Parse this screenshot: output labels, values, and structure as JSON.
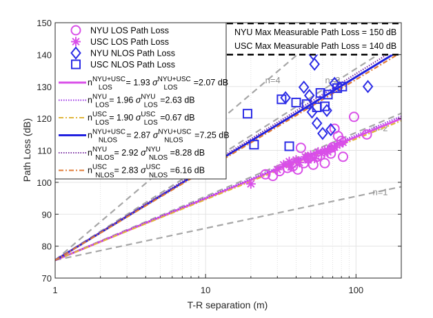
{
  "chart_data": {
    "type": "scatter",
    "title": "",
    "xlabel": "T-R separation (m)",
    "ylabel": "Path Loss (dB)",
    "xscale": "log",
    "xlim": [
      1,
      200
    ],
    "ylim": [
      70,
      150
    ],
    "xticks": [
      1,
      10,
      100
    ],
    "xtick_labels": [
      "1",
      "10",
      "100"
    ],
    "yticks": [
      70,
      80,
      90,
      100,
      110,
      120,
      130,
      140,
      150
    ],
    "ytick_labels": [
      "70",
      "80",
      "90",
      "100",
      "110",
      "120",
      "130",
      "140",
      "150"
    ],
    "grid": true,
    "fspl_1m": 75.6,
    "reference_lines": [
      {
        "label": "n=1",
        "n": 1,
        "color": "#a6a6a6"
      },
      {
        "label": "n=2",
        "n": 2,
        "color": "#a6a6a6"
      },
      {
        "label": "n=3",
        "n": 3,
        "color": "#a6a6a6"
      },
      {
        "label": "n=4",
        "n": 4,
        "color": "#a6a6a6"
      }
    ],
    "reference_labels": [
      {
        "text": "n=4",
        "x": 28,
        "y": 131
      },
      {
        "text": "n=3",
        "x": 70,
        "y": 131
      },
      {
        "text": "n=2",
        "x": 145,
        "y": 116
      },
      {
        "text": "n=1",
        "x": 145,
        "y": 96
      }
    ],
    "max_pl_lines": [
      {
        "label": "NYU Max Measurable Path Loss = 150 dB",
        "value": 150
      },
      {
        "label": "USC Max Measurable Path Loss = 140 dB",
        "value": 140
      }
    ],
    "series": [
      {
        "name": "NYU LOS Path Loss",
        "kind": "scatter",
        "marker": "circle",
        "color": "#d94fe8",
        "points": [
          [
            25,
            102.5
          ],
          [
            28,
            102
          ],
          [
            31,
            103.5
          ],
          [
            35,
            104.5
          ],
          [
            38,
            105
          ],
          [
            41,
            104
          ],
          [
            43,
            110.8
          ],
          [
            45,
            106
          ],
          [
            48,
            107.5
          ],
          [
            52,
            105.5
          ],
          [
            55,
            108
          ],
          [
            58,
            108.5
          ],
          [
            62,
            106
          ],
          [
            68,
            109
          ],
          [
            70,
            111
          ],
          [
            72,
            116.8
          ],
          [
            76,
            114.5
          ],
          [
            80,
            113
          ],
          [
            82,
            108
          ],
          [
            97,
            120.5
          ],
          [
            118,
            115
          ]
        ]
      },
      {
        "name": "USC LOS Path Loss",
        "kind": "scatter",
        "marker": "asterisk",
        "color": "#d94fe8",
        "points": [
          [
            20,
            99.5
          ],
          [
            30,
            104
          ],
          [
            33,
            105.5
          ],
          [
            36,
            106.5
          ],
          [
            37,
            104.8
          ],
          [
            40,
            107
          ],
          [
            42,
            106.2
          ],
          [
            46,
            108
          ],
          [
            48,
            107
          ],
          [
            50,
            108.5
          ],
          [
            53,
            107.5
          ],
          [
            56,
            109.5
          ],
          [
            59,
            109
          ],
          [
            62,
            110
          ],
          [
            65,
            109.5
          ],
          [
            68,
            110.5
          ],
          [
            72,
            111
          ],
          [
            78,
            112
          ],
          [
            82,
            112.5
          ]
        ]
      },
      {
        "name": "NYU NLOS Path Loss",
        "kind": "scatter",
        "marker": "diamond",
        "color": "#2b2be6",
        "points": [
          [
            34,
            126.5
          ],
          [
            45,
            129.8
          ],
          [
            49,
            127.2
          ],
          [
            52,
            140.2
          ],
          [
            53,
            137
          ],
          [
            51,
            122
          ],
          [
            60,
            115.3
          ],
          [
            68,
            116.5
          ],
          [
            64,
            122.5
          ],
          [
            55,
            118.5
          ],
          [
            72,
            131
          ],
          [
            120,
            130
          ]
        ]
      },
      {
        "name": "USC NLOS Path Loss",
        "kind": "scatter",
        "marker": "square",
        "color": "#2b2be6",
        "points": [
          [
            19,
            121.5
          ],
          [
            21,
            111.8
          ],
          [
            32,
            126
          ],
          [
            36,
            111.3
          ],
          [
            40,
            125
          ],
          [
            47,
            124.5
          ],
          [
            55,
            123.5
          ],
          [
            58,
            128
          ],
          [
            62,
            123.8
          ],
          [
            65,
            127.5
          ],
          [
            75,
            129.5
          ],
          [
            81,
            130
          ]
        ]
      },
      {
        "name": "n_LOS^NYU+USC = 1.93 σ_LOS^NYU+USC = 2.07 dB",
        "kind": "line",
        "n": 1.93,
        "sigma": 2.07,
        "style": "solid",
        "color": "#d94fe8",
        "legend": {
          "n": "1.93",
          "sigma": "2.07",
          "sup": "NYU+USC",
          "sub": "LOS"
        }
      },
      {
        "name": "n_LOS^NYU = 1.96 σ_LOS^NYU = 2.63 dB",
        "kind": "line",
        "n": 1.96,
        "sigma": 2.63,
        "style": "dotted",
        "color": "#9b30e6",
        "legend": {
          "n": "1.96",
          "sigma": "2.63",
          "sup": "NYU",
          "sub": "LOS"
        }
      },
      {
        "name": "n_LOS^USC = 1.90 σ_LOS^USC = 0.67 dB",
        "kind": "line",
        "n": 1.9,
        "sigma": 0.67,
        "style": "dashdot",
        "color": "#e0b53a",
        "legend": {
          "n": "1.90",
          "sigma": "0.67",
          "sup": "USC",
          "sub": "LOS"
        }
      },
      {
        "name": "n_NLOS^NYU+USC = 2.87 σ_NLOS^NYU+USC = 7.25 dB",
        "kind": "line",
        "n": 2.87,
        "sigma": 7.25,
        "style": "solid",
        "color": "#2020e0",
        "legend": {
          "n": "2.87",
          "sigma": "7.25",
          "sup": "NYU+USC",
          "sub": "NLOS"
        }
      },
      {
        "name": "n_NLOS^NYU = 2.92 σ_NLOS^NYU = 8.28 dB",
        "kind": "line",
        "n": 2.92,
        "sigma": 8.28,
        "style": "dotted",
        "color": "#7a2fa3",
        "legend": {
          "n": "2.92",
          "sigma": "8.28",
          "sup": "NYU",
          "sub": "NLOS"
        }
      },
      {
        "name": "n_NLOS^USC = 2.83 σ_NLOS^USC = 6.16 dB",
        "kind": "line",
        "n": 2.83,
        "sigma": 6.16,
        "style": "dashdot",
        "color": "#e07a35",
        "legend": {
          "n": "2.83",
          "sigma": "6.16",
          "sup": "USC",
          "sub": "NLOS"
        }
      }
    ],
    "legend_position": "top-left",
    "legend_prefix_n": "n",
    "legend_sigma": "σ",
    "legend_unit": "dB"
  }
}
